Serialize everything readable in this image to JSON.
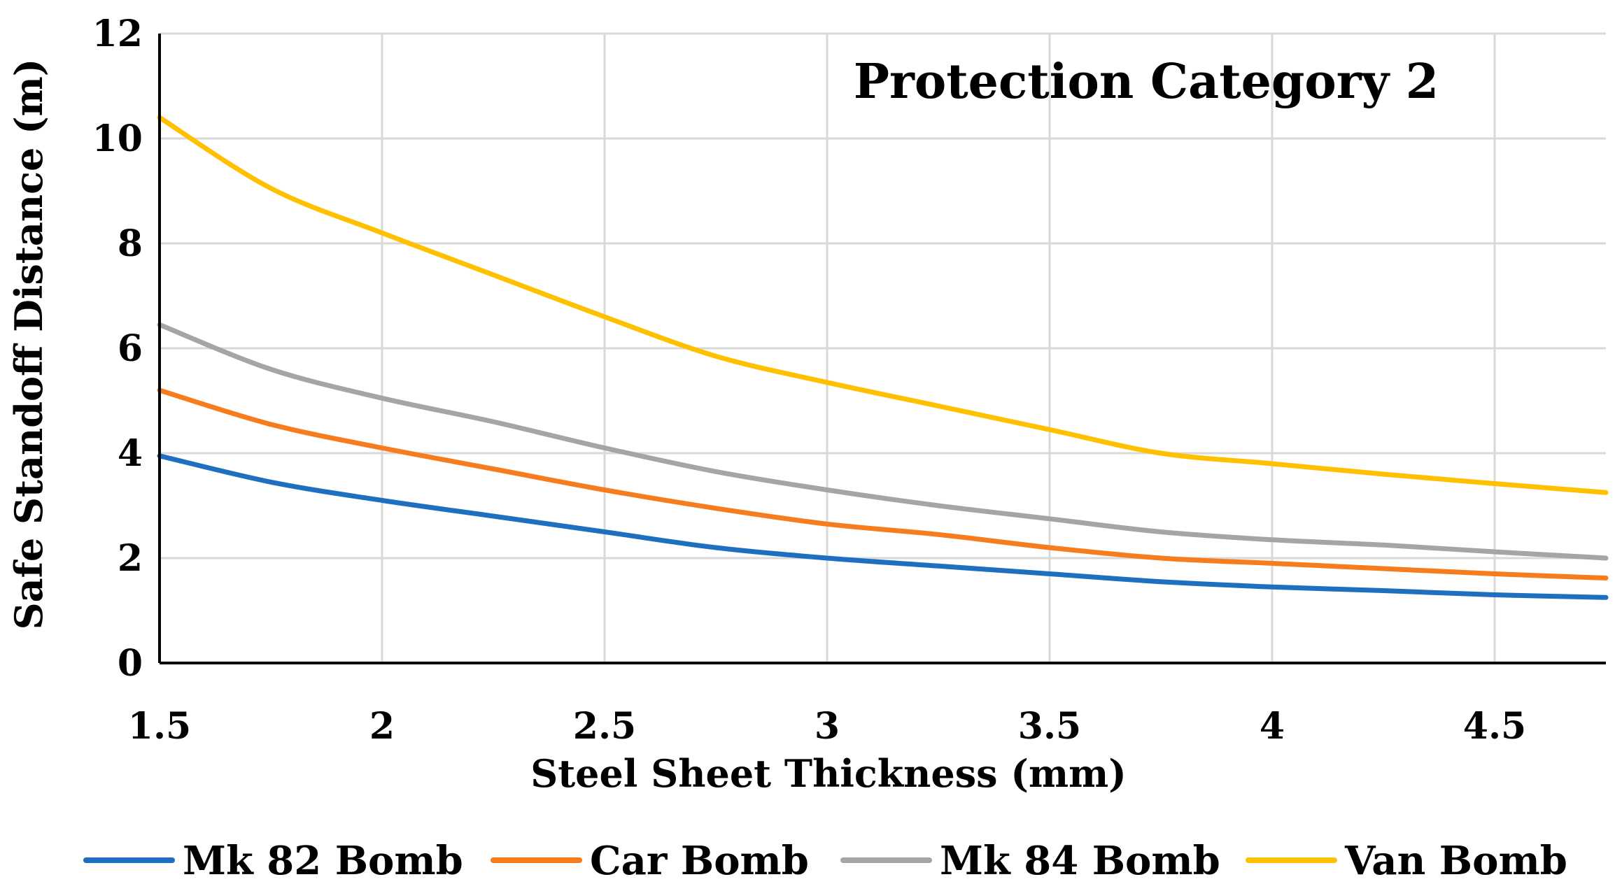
{
  "chart_data": {
    "type": "line",
    "annotation": "Protection Category 2",
    "xlabel": "Steel Sheet Thickness (mm)",
    "ylabel": "Safe Standoff Distance (m)",
    "xlim": [
      1.5,
      4.75
    ],
    "ylim": [
      0,
      12
    ],
    "xticks": [
      "1.5",
      "2",
      "2.5",
      "3",
      "3.5",
      "4",
      "4.5"
    ],
    "yticks": [
      "0",
      "2",
      "4",
      "6",
      "8",
      "10",
      "12"
    ],
    "grid": true,
    "legend_position": "bottom",
    "x": [
      1.5,
      1.75,
      2.0,
      2.25,
      2.5,
      2.75,
      3.0,
      3.25,
      3.5,
      3.75,
      4.0,
      4.25,
      4.5,
      4.75
    ],
    "series": [
      {
        "name": "Mk 82 Bomb",
        "color": "#1f6fc1",
        "values": [
          3.95,
          3.45,
          3.1,
          2.8,
          2.5,
          2.2,
          2.0,
          1.85,
          1.7,
          1.55,
          1.45,
          1.38,
          1.3,
          1.25
        ]
      },
      {
        "name": "Car Bomb",
        "color": "#f77c1e",
        "values": [
          5.2,
          4.55,
          4.1,
          3.7,
          3.3,
          2.95,
          2.65,
          2.45,
          2.2,
          2.0,
          1.9,
          1.8,
          1.7,
          1.62
        ]
      },
      {
        "name": "Mk 84 Bomb",
        "color": "#a5a5a5",
        "values": [
          6.45,
          5.6,
          5.05,
          4.6,
          4.1,
          3.65,
          3.3,
          3.0,
          2.75,
          2.5,
          2.35,
          2.25,
          2.12,
          2.0
        ]
      },
      {
        "name": "Van Bomb",
        "color": "#ffc000",
        "values": [
          10.4,
          9.05,
          8.2,
          7.4,
          6.6,
          5.85,
          5.35,
          4.9,
          4.45,
          4.0,
          3.8,
          3.6,
          3.42,
          3.25
        ]
      }
    ]
  }
}
